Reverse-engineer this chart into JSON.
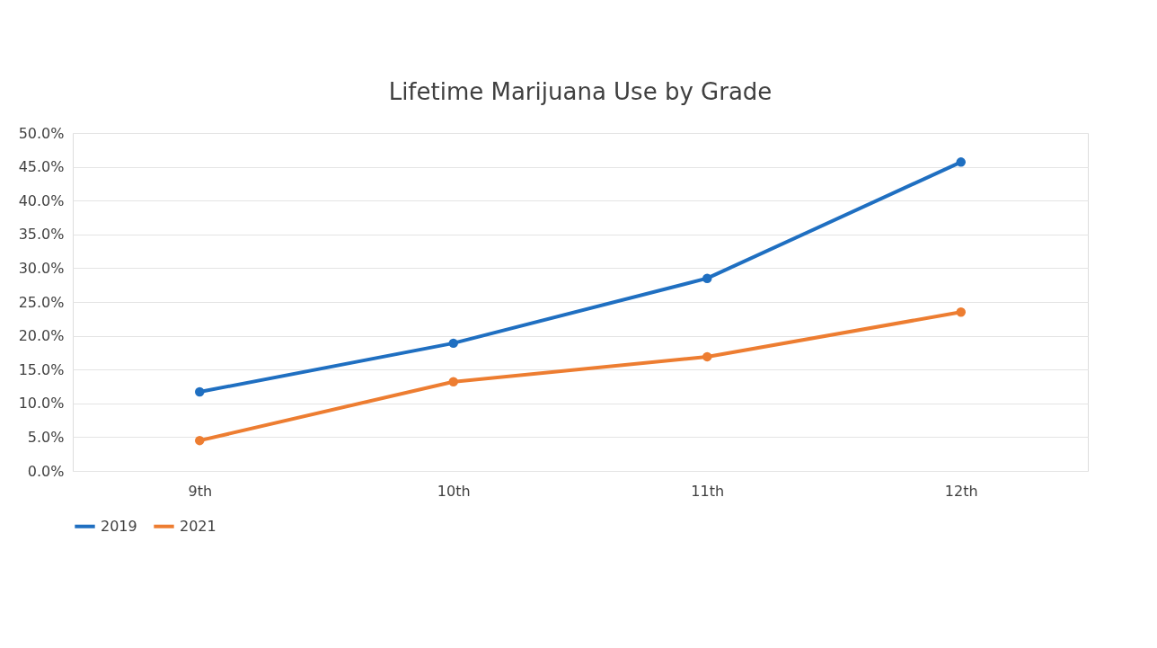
{
  "chart_data": {
    "type": "line",
    "title": "Lifetime Marijuana Use by Grade",
    "categories": [
      "9th",
      "10th",
      "11th",
      "12th"
    ],
    "series": [
      {
        "name": "2019",
        "color": "#1f6fc1",
        "values": [
          11.7,
          18.9,
          28.5,
          45.7
        ]
      },
      {
        "name": "2021",
        "color": "#ed7d31",
        "values": [
          4.5,
          13.2,
          16.9,
          23.5
        ]
      }
    ],
    "ylim": [
      0,
      50
    ],
    "yticks": [
      {
        "value": 0,
        "label": "0.0%"
      },
      {
        "value": 5,
        "label": "5.0%"
      },
      {
        "value": 10,
        "label": "10.0%"
      },
      {
        "value": 15,
        "label": "15.0%"
      },
      {
        "value": 20,
        "label": "20.0%"
      },
      {
        "value": 25,
        "label": "25.0%"
      },
      {
        "value": 30,
        "label": "30.0%"
      },
      {
        "value": 35,
        "label": "35.0%"
      },
      {
        "value": 40,
        "label": "40.0%"
      },
      {
        "value": 45,
        "label": "45.0%"
      },
      {
        "value": 50,
        "label": "50.0%"
      }
    ],
    "grid": "y",
    "legend": "bottom",
    "marker": "circle",
    "line_style": "solid"
  }
}
